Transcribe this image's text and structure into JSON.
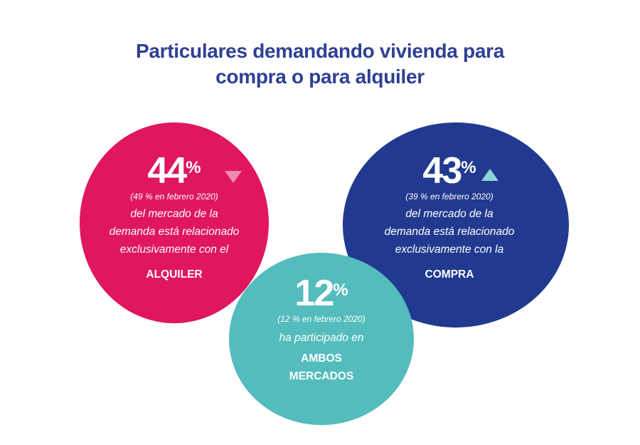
{
  "title": {
    "line1": "Particulares demandando vivienda para",
    "line2": "compra o para alquiler"
  },
  "colors": {
    "title": "#2e3f94",
    "alquiler": "#e0165f",
    "compra": "#213a8f",
    "ambos": "#54bcbd",
    "down_arrow": "#f08bb0",
    "up_arrow": "#8fd3d6"
  },
  "alquiler": {
    "value": "44",
    "unit": "%",
    "trend": "down",
    "previous": "(49 % en febrero 2020)",
    "desc": [
      "del mercado de la",
      "demanda está relacionado",
      "exclusivamente con el"
    ],
    "keyword": "ALQUILER"
  },
  "compra": {
    "value": "43",
    "unit": "%",
    "trend": "up",
    "previous": "(39 % en febrero 2020)",
    "desc": [
      "del mercado de la",
      "demanda está relacionado",
      "exclusivamente con la"
    ],
    "keyword": "COMPRA"
  },
  "ambos": {
    "value": "12",
    "unit": "%",
    "previous": "(12 % en febrero 2020)",
    "desc": [
      "ha participado en"
    ],
    "keyword": [
      "AMBOS",
      "MERCADOS"
    ]
  }
}
